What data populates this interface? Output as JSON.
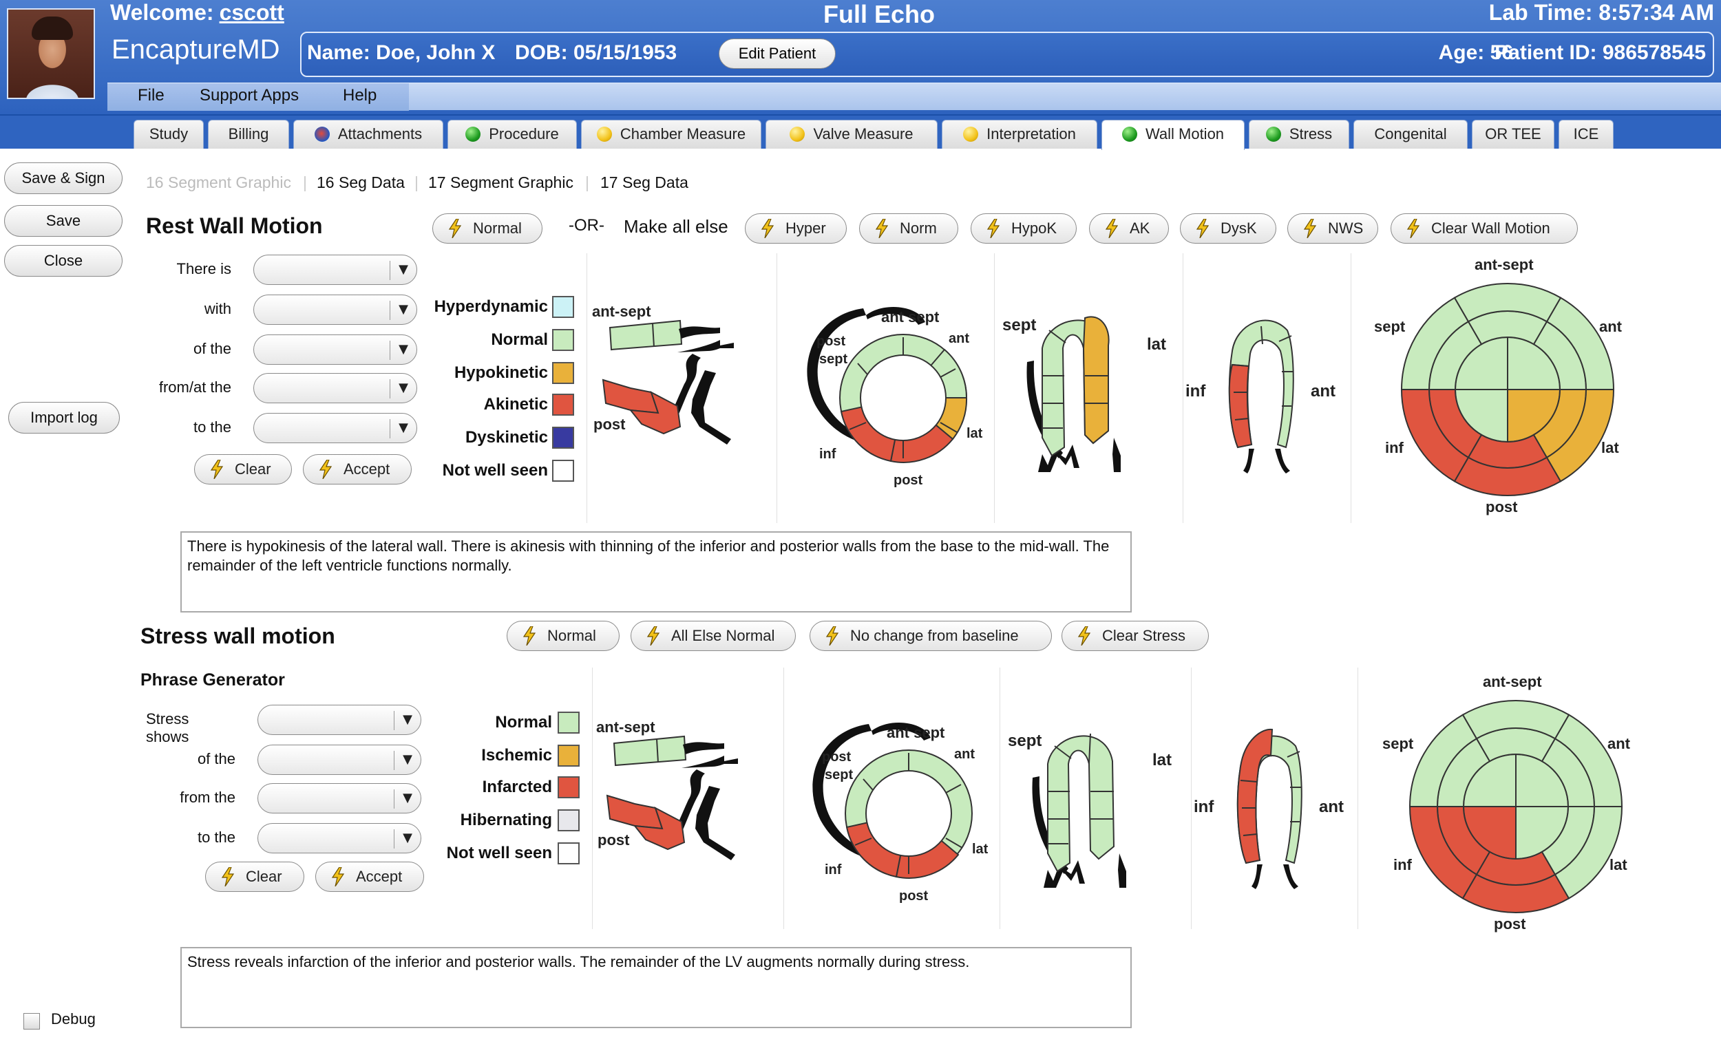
{
  "header": {
    "welcome_label": "Welcome:",
    "username": "cscott",
    "brand": "EncaptureMD",
    "app_title": "Full Echo",
    "lab_time": "Lab Time: 8:57:34 AM"
  },
  "patient": {
    "name": "Name: Doe, John X",
    "dob": "DOB: 05/15/1953",
    "edit_label": "Edit Patient",
    "age": "Age: 56",
    "patient_id": "Patient ID: 986578545"
  },
  "menu": {
    "file": "File",
    "support": "Support Apps",
    "help": "Help"
  },
  "tabs": [
    {
      "label": "Study",
      "dot": ""
    },
    {
      "label": "Billing",
      "dot": ""
    },
    {
      "label": "Attachments",
      "dot": "rocket"
    },
    {
      "label": "Procedure",
      "dot": "green"
    },
    {
      "label": "Chamber Measure",
      "dot": "yellow"
    },
    {
      "label": "Valve Measure",
      "dot": "yellow"
    },
    {
      "label": "Interpretation",
      "dot": "yellow"
    },
    {
      "label": "Wall Motion",
      "dot": "green"
    },
    {
      "label": "Stress",
      "dot": "green"
    },
    {
      "label": "Congenital",
      "dot": ""
    },
    {
      "label": "OR TEE",
      "dot": ""
    },
    {
      "label": "ICE",
      "dot": ""
    }
  ],
  "side": {
    "save_sign": "Save & Sign",
    "save": "Save",
    "close": "Close",
    "import_log": "Import log"
  },
  "subtabs": {
    "t1": "16 Segment Graphic",
    "t2": "16 Seg Data",
    "t3": "17 Segment Graphic",
    "t4": "17 Seg Data",
    "sep": "|"
  },
  "rest": {
    "title": "Rest Wall Motion",
    "normal_btn": "Normal",
    "or_label": "-OR-",
    "make_all": "Make all else",
    "hyper": "Hyper",
    "norm": "Norm",
    "hypok": "HypoK",
    "ak": "AK",
    "dysk": "DysK",
    "nws": "NWS",
    "clear_wm": "Clear Wall Motion",
    "labels": {
      "there_is": "There is",
      "with": "with",
      "of_the": "of the",
      "from_at": "from/at the",
      "to_the": "to the"
    },
    "clear": "Clear",
    "accept": "Accept",
    "legend": {
      "hyperdynamic": "Hyperdynamic",
      "normal": "Normal",
      "hypokinetic": "Hypokinetic",
      "akinetic": "Akinetic",
      "dyskinetic": "Dyskinetic",
      "nws": "Not well seen"
    },
    "narrative": "There is hypokinesis of the lateral wall.  There is akinesis with thinning of the inferior and posterior walls from the base to the mid-wall.  The remainder of the left ventricle functions normally."
  },
  "stress": {
    "title": "Stress wall motion",
    "phrase_gen": "Phrase Generator",
    "normal_btn": "Normal",
    "all_else": "All Else Normal",
    "no_change": "No change from baseline",
    "clear_stress": "Clear Stress",
    "labels": {
      "shows": "Stress shows",
      "of_the": "of the",
      "from_the": "from the",
      "to_the": "to the"
    },
    "clear": "Clear",
    "accept": "Accept",
    "legend": {
      "normal": "Normal",
      "ischemic": "Ischemic",
      "infarcted": "Infarcted",
      "hibernating": "Hibernating",
      "nws": "Not well seen"
    },
    "narrative": "Stress reveals infarction of the inferior and posterior walls.  The remainder of the LV augments normally during stress."
  },
  "diagram_labels": {
    "ant_sept": "ant-sept",
    "ant_sept2": "ant sept",
    "post": "post",
    "post_sept": "post sept",
    "post_l": "post",
    "sept_l": "sept",
    "ant": "ant",
    "lat": "lat",
    "inf": "inf",
    "post2": "post"
  },
  "debug": "Debug",
  "colors": {
    "normal": "#c8ebbe",
    "hypo": "#e9b13a",
    "akinetic": "#e05540",
    "dyskinetic": "#383aa0",
    "hyperdynamic": "#ccf2f6",
    "hibernating": "#e8e8ec"
  }
}
